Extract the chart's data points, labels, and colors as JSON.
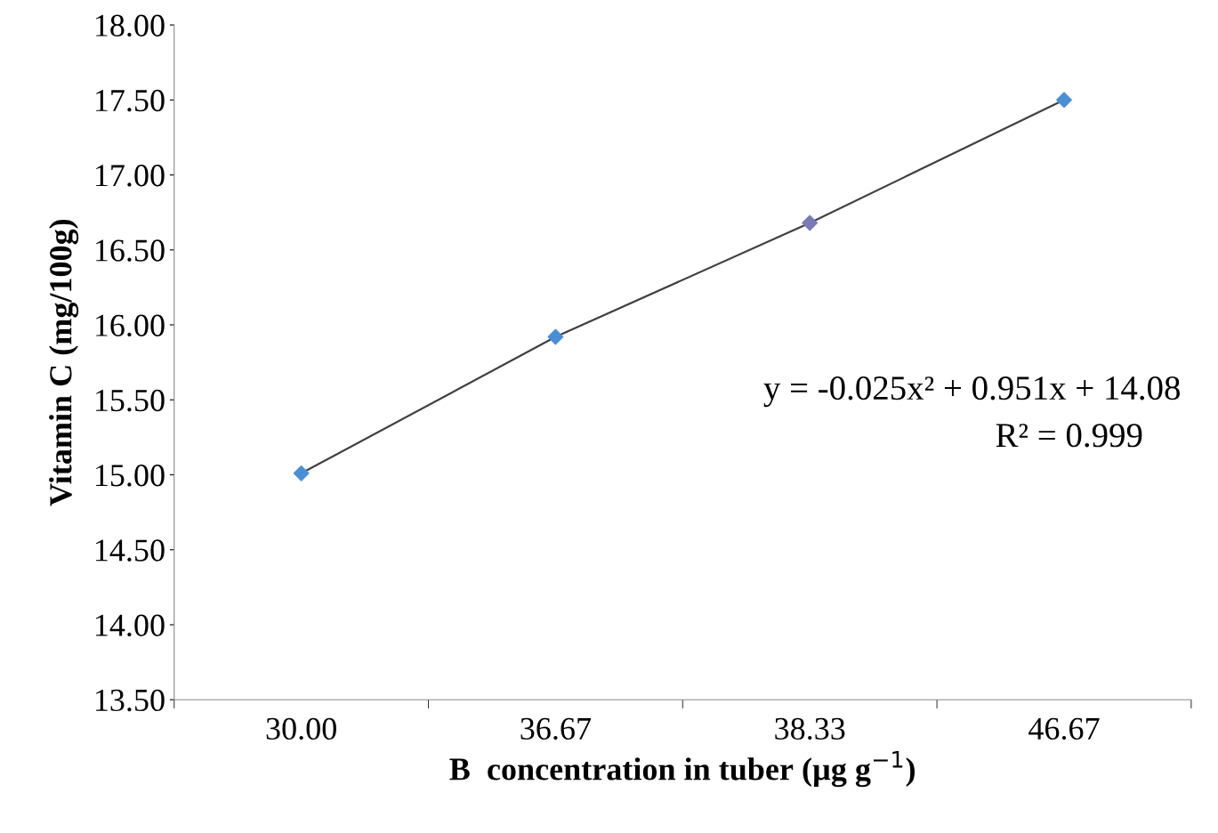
{
  "chart_data": {
    "type": "line",
    "xlabel": "B  concentration in tuber (µg g$^{−1}$)",
    "ylabel": "Vitamin C (mg/100g)",
    "categories": [
      "30.00",
      "36.67",
      "38.33",
      "46.67"
    ],
    "series": [
      {
        "color": "#404040",
        "colors": [
          "#4a8fd6",
          "#4a8fd6",
          "#7a7ab8",
          "#4a8fd6"
        ],
        "values": [
          15.01,
          15.92,
          16.68,
          17.5
        ],
        "marker": "diamond"
      }
    ],
    "ylim": [
      13.5,
      18.0
    ],
    "yticks": [
      {
        "value": 13.5,
        "label": "13.50"
      },
      {
        "value": 14.0,
        "label": "14.00"
      },
      {
        "value": 14.5,
        "label": "14.50"
      },
      {
        "value": 15.0,
        "label": "15.00"
      },
      {
        "value": 15.5,
        "label": "15.50"
      },
      {
        "value": 16.0,
        "label": "16.00"
      },
      {
        "value": 16.5,
        "label": "16.50"
      },
      {
        "value": 17.0,
        "label": "17.00"
      },
      {
        "value": 17.5,
        "label": "17.50"
      },
      {
        "value": 18.0,
        "label": "18.00"
      }
    ],
    "annotations": [
      "y = -0.025x² + 0.951x + 14.08",
      "R² = 0.999"
    ],
    "grid": false,
    "legend": false
  }
}
